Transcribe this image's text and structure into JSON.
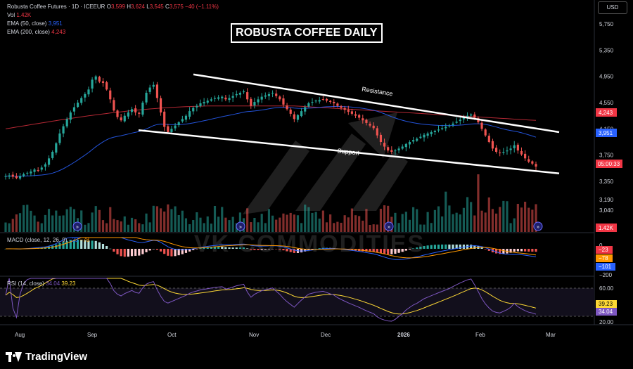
{
  "header": {
    "symbol_line": "Robusta Coffee Futures · 1D · ICEEUR",
    "ohlc_prefix_o": "O",
    "ohlc_o": "3,599",
    "ohlc_prefix_h": "H",
    "ohlc_h": "3,624",
    "ohlc_prefix_l": "L",
    "ohlc_l": "3,545",
    "ohlc_prefix_c": "C",
    "ohlc_c": "3,575",
    "ohlc_change": "−40 (−1.11%)",
    "vol_label": "Vol",
    "vol_value": "1.42K",
    "ema50_label": "EMA (50, close)",
    "ema50_value": "3,951",
    "ema200_label": "EMA (200, close)",
    "ema200_value": "4,243"
  },
  "currency_button": "USD",
  "title": "ROBUSTA COFFEE DAILY",
  "watermark": "VK COMMODITIES",
  "brand": "TradingView",
  "colors": {
    "up": "#26a69a",
    "down": "#ef5350",
    "ema50": "#2962ff",
    "ema200": "#f23645",
    "rsi": "#7e57c2",
    "rsi_ma": "#fdd835",
    "macd_signal": "#ff9800"
  },
  "chart_data": [
    {
      "type": "candlestick",
      "title": "ROBUSTA COFFEE DAILY",
      "y_ticks": [
        "5,750",
        "5,350",
        "4,950",
        "4,550",
        "4,150",
        "3,750",
        "3,350"
      ],
      "ylim": [
        3100,
        6000
      ],
      "x_ticks": [
        "Aug",
        "Sep",
        "Oct",
        "Nov",
        "Dec",
        "2026",
        "Feb",
        "Mar"
      ],
      "price_labels": [
        {
          "label": "4,243",
          "color": "#f23645"
        },
        {
          "label": "3,951",
          "color": "#2962ff"
        },
        {
          "label": "05:00:33",
          "color": "#f23645"
        }
      ],
      "annotations": [
        "Resistance",
        "Support"
      ],
      "trendlines": [
        {
          "name": "Resistance",
          "from": [
            "Oct",
            4980
          ],
          "to": [
            "Mar",
            4100
          ]
        },
        {
          "name": "Support",
          "from": [
            "Sep",
            4130
          ],
          "to": [
            "Mar",
            3470
          ]
        }
      ],
      "closes": [
        3430,
        3440,
        3420,
        3400,
        3430,
        3460,
        3480,
        3500,
        3530,
        3520,
        3560,
        3610,
        3700,
        3800,
        3930,
        4080,
        4190,
        4300,
        4400,
        4480,
        4550,
        4620,
        4680,
        4750,
        4900,
        4950,
        4870,
        4850,
        4750,
        4600,
        4430,
        4330,
        4280,
        4350,
        4400,
        4450,
        4400,
        4380,
        4550,
        4700,
        4780,
        4820,
        4620,
        4400,
        4180,
        4100,
        4150,
        4200,
        4250,
        4300,
        4350,
        4420,
        4470,
        4500,
        4540,
        4560,
        4580,
        4600,
        4620,
        4630,
        4640,
        4600,
        4620,
        4650,
        4680,
        4700,
        4720,
        4600,
        4500,
        4560,
        4600,
        4640,
        4660,
        4680,
        4700,
        4650,
        4600,
        4520,
        4450,
        4380,
        4300,
        4360,
        4420,
        4480,
        4540,
        4560,
        4580,
        4590,
        4600,
        4580,
        4560,
        4540,
        4500,
        4470,
        4440,
        4410,
        4380,
        4350,
        4320,
        4280,
        4240,
        4200,
        4160,
        4050,
        3950,
        3880,
        3820,
        3800,
        3820,
        3850,
        3880,
        3920,
        3950,
        3980,
        4000,
        4030,
        4060,
        4080,
        4100,
        4120,
        4140,
        4160,
        4180,
        4200,
        4230,
        4260,
        4290,
        4320,
        4350,
        4370,
        4320,
        4250,
        4150,
        4050,
        3950,
        3850,
        3800,
        3780,
        3800,
        3820,
        3850,
        3900,
        3820,
        3760,
        3700,
        3650,
        3620,
        3575
      ],
      "volume_label": "1.42K"
    },
    {
      "type": "macd",
      "label": "MACD (close, 12, 26, 9)",
      "values": [
        "−23",
        "−78"
      ],
      "y_ticks": [
        "0",
        "−200"
      ],
      "axis_labels": [
        {
          "label": "−23",
          "color": "#f23645"
        },
        {
          "label": "−78",
          "color": "#ff9800"
        },
        {
          "label": "−101",
          "color": "#2962ff"
        }
      ]
    },
    {
      "type": "rsi",
      "label": "RSI (14, close)",
      "values": [
        "34.04",
        "39.23"
      ],
      "y_ticks": [
        "60.00",
        "20.00"
      ],
      "axis_labels": [
        {
          "label": "39.23",
          "color": "#fdd835"
        },
        {
          "label": "34.04",
          "color": "#7e57c2"
        }
      ]
    }
  ]
}
